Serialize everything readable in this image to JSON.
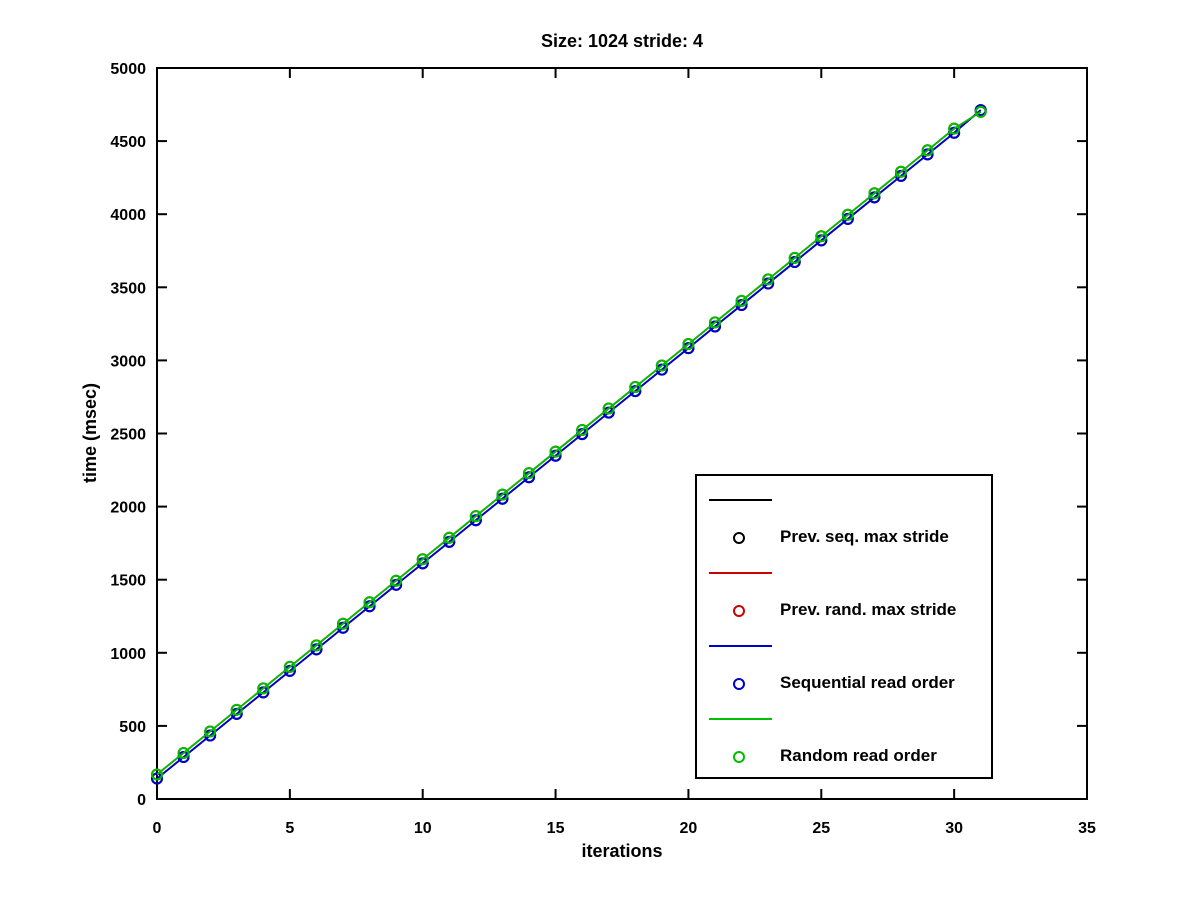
{
  "title": "Size: 1024 stride: 4",
  "axes": {
    "xlabel": "iterations",
    "ylabel": "time (msec)",
    "xlim": [
      0,
      35
    ],
    "ylim": [
      0,
      5000
    ],
    "xticks": [
      0,
      5,
      10,
      15,
      20,
      25,
      30,
      35
    ],
    "yticks": [
      0,
      500,
      1000,
      1500,
      2000,
      2500,
      3000,
      3500,
      4000,
      4500,
      5000
    ],
    "axis_color": "#000000"
  },
  "legend": {
    "entries": [
      {
        "label": "Prev. seq. max stride",
        "color": "#000000"
      },
      {
        "label": "Prev. rand. max stride",
        "color": "#cc0000"
      },
      {
        "label": "Sequential read order",
        "color": "#0000cc"
      },
      {
        "label": "Random read order",
        "color": "#00be00"
      }
    ]
  },
  "chart_data": {
    "type": "line",
    "title": "Size: 1024 stride: 4",
    "xlabel": "iterations",
    "ylabel": "time (msec)",
    "xlim": [
      0,
      35
    ],
    "ylim": [
      0,
      5000
    ],
    "grid": false,
    "legend_position": "lower-right-inside",
    "marker": "circle",
    "x": [
      0,
      1,
      2,
      3,
      4,
      5,
      6,
      7,
      8,
      9,
      10,
      11,
      12,
      13,
      14,
      15,
      16,
      17,
      18,
      19,
      20,
      21,
      22,
      23,
      24,
      25,
      26,
      27,
      28,
      29,
      30,
      31
    ],
    "series": [
      {
        "name": "Prev. seq. max stride",
        "color": "#000000",
        "values": [
          140,
          287,
          434,
          582,
          729,
          876,
          1023,
          1171,
          1318,
          1465,
          1612,
          1759,
          1907,
          2054,
          2201,
          2348,
          2496,
          2643,
          2790,
          2937,
          3084,
          3232,
          3379,
          3526,
          3673,
          3821,
          3968,
          4115,
          4262,
          4409,
          4557,
          4712
        ],
        "note": "hidden beneath Sequential read order series"
      },
      {
        "name": "Prev. rand. max stride",
        "color": "#cc0000",
        "values": [
          168,
          315,
          462,
          610,
          757,
          904,
          1051,
          1199,
          1346,
          1493,
          1640,
          1787,
          1935,
          2082,
          2229,
          2376,
          2524,
          2671,
          2818,
          2965,
          3112,
          3260,
          3407,
          3554,
          3701,
          3849,
          3996,
          4143,
          4290,
          4437,
          4585,
          4700
        ],
        "note": "hidden beneath Random read order series"
      },
      {
        "name": "Sequential read order",
        "color": "#0000cc",
        "values": [
          140,
          287,
          434,
          582,
          729,
          876,
          1023,
          1171,
          1318,
          1465,
          1612,
          1759,
          1907,
          2054,
          2201,
          2348,
          2496,
          2643,
          2790,
          2937,
          3084,
          3232,
          3379,
          3526,
          3673,
          3821,
          3968,
          4115,
          4262,
          4409,
          4557,
          4712
        ]
      },
      {
        "name": "Random read order",
        "color": "#00be00",
        "values": [
          168,
          315,
          462,
          610,
          757,
          904,
          1051,
          1199,
          1346,
          1493,
          1640,
          1787,
          1935,
          2082,
          2229,
          2376,
          2524,
          2671,
          2818,
          2965,
          3112,
          3260,
          3407,
          3554,
          3701,
          3849,
          3996,
          4143,
          4290,
          4437,
          4585,
          4700
        ]
      }
    ]
  }
}
